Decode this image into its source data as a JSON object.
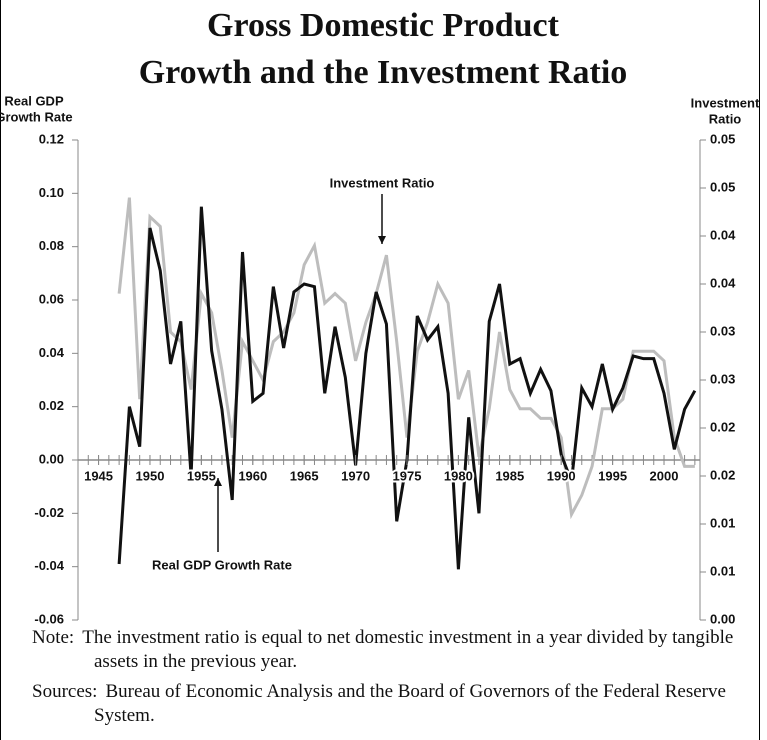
{
  "chart_data": {
    "type": "line",
    "title": [
      "Gross Domestic Product",
      "Growth and the Investment Ratio"
    ],
    "ylabel": [
      "Real GDP",
      "Growth Rate"
    ],
    "y2label": [
      "Investment",
      "Ratio"
    ],
    "x": [
      1947,
      1948,
      1949,
      1950,
      1951,
      1952,
      1953,
      1954,
      1955,
      1956,
      1957,
      1958,
      1959,
      1960,
      1961,
      1962,
      1963,
      1964,
      1965,
      1966,
      1967,
      1968,
      1969,
      1970,
      1971,
      1972,
      1973,
      1974,
      1975,
      1976,
      1977,
      1978,
      1979,
      1980,
      1981,
      1982,
      1983,
      1984,
      1985,
      1986,
      1987,
      1988,
      1989,
      1990,
      1991,
      1992,
      1993,
      1994,
      1995,
      1996,
      1997,
      1998,
      1999,
      2000,
      2001,
      2002,
      2003
    ],
    "xlim": [
      1943,
      2003.5
    ],
    "xticks": [
      1945,
      1950,
      1955,
      1960,
      1965,
      1970,
      1975,
      1980,
      1985,
      1990,
      1995,
      2000
    ],
    "ylim": [
      -0.06,
      0.12
    ],
    "yticks": [
      -0.06,
      -0.04,
      -0.02,
      {
        "value": 0,
        "label": "0.00"
      },
      0.02,
      0.04,
      0.06,
      0.08,
      {
        "value": 0.1,
        "label": "0.10"
      },
      0.12
    ],
    "y2lim": [
      0,
      0.05
    ],
    "y2ticks": [
      {
        "value": 0,
        "label": "0.00"
      },
      {
        "value": 0.005,
        "label": "0.01"
      },
      {
        "value": 0.01,
        "label": "0.01"
      },
      {
        "value": 0.015,
        "label": "0.02"
      },
      {
        "value": 0.02,
        "label": "0.02"
      },
      {
        "value": 0.025,
        "label": "0.03"
      },
      {
        "value": 0.03,
        "label": "0.03"
      },
      {
        "value": 0.035,
        "label": "0.04"
      },
      {
        "value": 0.04,
        "label": "0.04"
      },
      {
        "value": 0.045,
        "label": "0.05"
      },
      {
        "value": 0.05,
        "label": "0.05"
      }
    ],
    "series": [
      {
        "name": "Investment Ratio",
        "color": "#bdbdbd",
        "axis": "y2",
        "values": [
          0.034,
          0.044,
          0.023,
          0.042,
          0.041,
          0.03,
          0.029,
          0.024,
          0.034,
          0.032,
          0.026,
          0.019,
          0.029,
          0.027,
          0.025,
          0.029,
          0.03,
          0.032,
          0.037,
          0.039,
          0.033,
          0.034,
          0.033,
          0.027,
          0.031,
          0.034,
          0.038,
          0.029,
          0.019,
          0.028,
          0.031,
          0.035,
          0.033,
          0.023,
          0.026,
          0.017,
          0.022,
          0.03,
          0.024,
          0.022,
          0.022,
          0.021,
          0.021,
          0.019,
          0.011,
          0.013,
          0.016,
          0.022,
          0.022,
          0.023,
          0.028,
          0.028,
          0.028,
          0.027,
          0.019,
          0.016,
          0.016
        ]
      },
      {
        "name": "Real GDP Growth Rate",
        "color": "#111111",
        "values": [
          -0.039,
          0.02,
          0.005,
          0.087,
          0.071,
          0.036,
          0.052,
          -0.006,
          0.095,
          0.041,
          0.019,
          -0.015,
          0.078,
          0.022,
          0.025,
          0.065,
          0.042,
          0.063,
          0.066,
          0.065,
          0.025,
          0.05,
          0.031,
          -0.002,
          0.04,
          0.063,
          0.051,
          -0.023,
          0.0,
          0.054,
          0.045,
          0.05,
          0.025,
          -0.041,
          0.016,
          -0.02,
          0.052,
          0.066,
          0.036,
          0.038,
          0.025,
          0.034,
          0.026,
          0.002,
          -0.008,
          0.027,
          0.02,
          0.036,
          0.019,
          0.027,
          0.039,
          0.038,
          0.038,
          0.025,
          0.004,
          0.019,
          0.026
        ]
      }
    ],
    "notes": [
      {
        "label": "Note:",
        "text": "The investment ratio is equal to net domestic investment in a year divided by tangible assets in the previous year."
      },
      {
        "label": "Sources:",
        "text": "Bureau of Economic Analysis and the Board of Governors of the Federal Reserve System."
      }
    ]
  }
}
